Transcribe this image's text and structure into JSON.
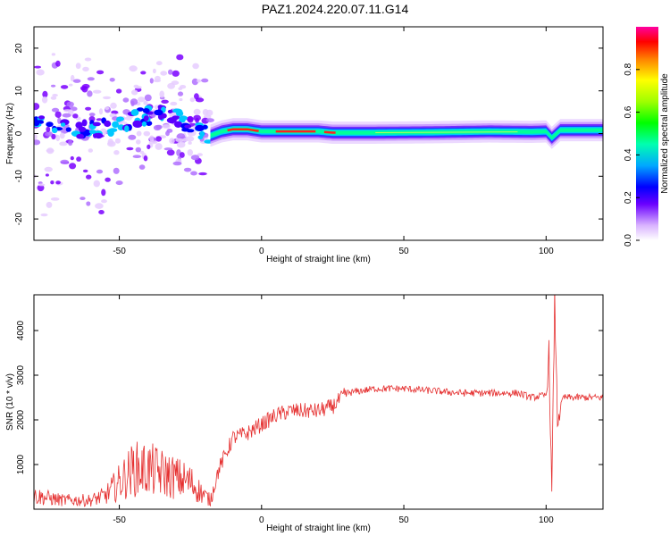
{
  "title": "PAZ1.2024.220.07.11.G14",
  "chart_data": [
    {
      "type": "heatmap",
      "xlabel": "Height of straight line (km)",
      "ylabel": "Frequency (Hz)",
      "xlim": [
        -80,
        120
      ],
      "ylim": [
        -25,
        25
      ],
      "x_ticks": [
        -50,
        0,
        50,
        100
      ],
      "y_ticks": [
        -20,
        -10,
        0,
        10,
        20
      ],
      "colorbar": {
        "label": "Normalized spectral amplitude",
        "range": [
          0.0,
          1.0
        ],
        "ticks": [
          0.0,
          0.2,
          0.4,
          0.6,
          0.8
        ]
      },
      "ridge": {
        "x": [
          -78,
          -70,
          -62,
          -55,
          -48,
          -42,
          -36,
          -30,
          -26,
          -22,
          -18,
          -14,
          -10,
          -5,
          0,
          10,
          20,
          25,
          40,
          60,
          80,
          95,
          100,
          102,
          105,
          110,
          120
        ],
        "y": [
          2,
          2,
          1,
          1.5,
          2,
          4,
          4.5,
          3.5,
          2.5,
          1,
          -0.5,
          0.5,
          1,
          1,
          0.5,
          0.5,
          0.5,
          0.2,
          0.2,
          0.3,
          0.5,
          0.4,
          0.5,
          -1,
          0.8,
          0.8,
          0.8
        ]
      }
    },
    {
      "type": "line",
      "xlabel": "Height of straight line (km)",
      "ylabel": "SNR (10 * v/v)",
      "xlim": [
        -80,
        120
      ],
      "ylim": [
        0,
        4800
      ],
      "x_ticks": [
        -50,
        0,
        50,
        100
      ],
      "y_ticks": [
        1000,
        2000,
        3000,
        4000
      ],
      "color": "#e53030",
      "series": [
        {
          "x": [
            -80,
            -70,
            -60,
            -55,
            -50,
            -45,
            -40,
            -35,
            -30,
            -25,
            -20,
            -18,
            -15,
            -10,
            -5,
            0,
            5,
            10,
            15,
            20,
            25,
            30,
            40,
            50,
            60,
            70,
            80,
            90,
            95,
            100,
            101,
            102,
            103,
            104,
            106,
            110,
            120
          ],
          "y": [
            300,
            200,
            200,
            300,
            600,
            900,
            900,
            800,
            700,
            600,
            300,
            200,
            900,
            1600,
            1700,
            1900,
            2100,
            2200,
            2200,
            2200,
            2300,
            2600,
            2700,
            2700,
            2650,
            2600,
            2600,
            2600,
            2500,
            2550,
            3500,
            300,
            4700,
            2000,
            2500,
            2500,
            2500
          ]
        }
      ]
    }
  ]
}
